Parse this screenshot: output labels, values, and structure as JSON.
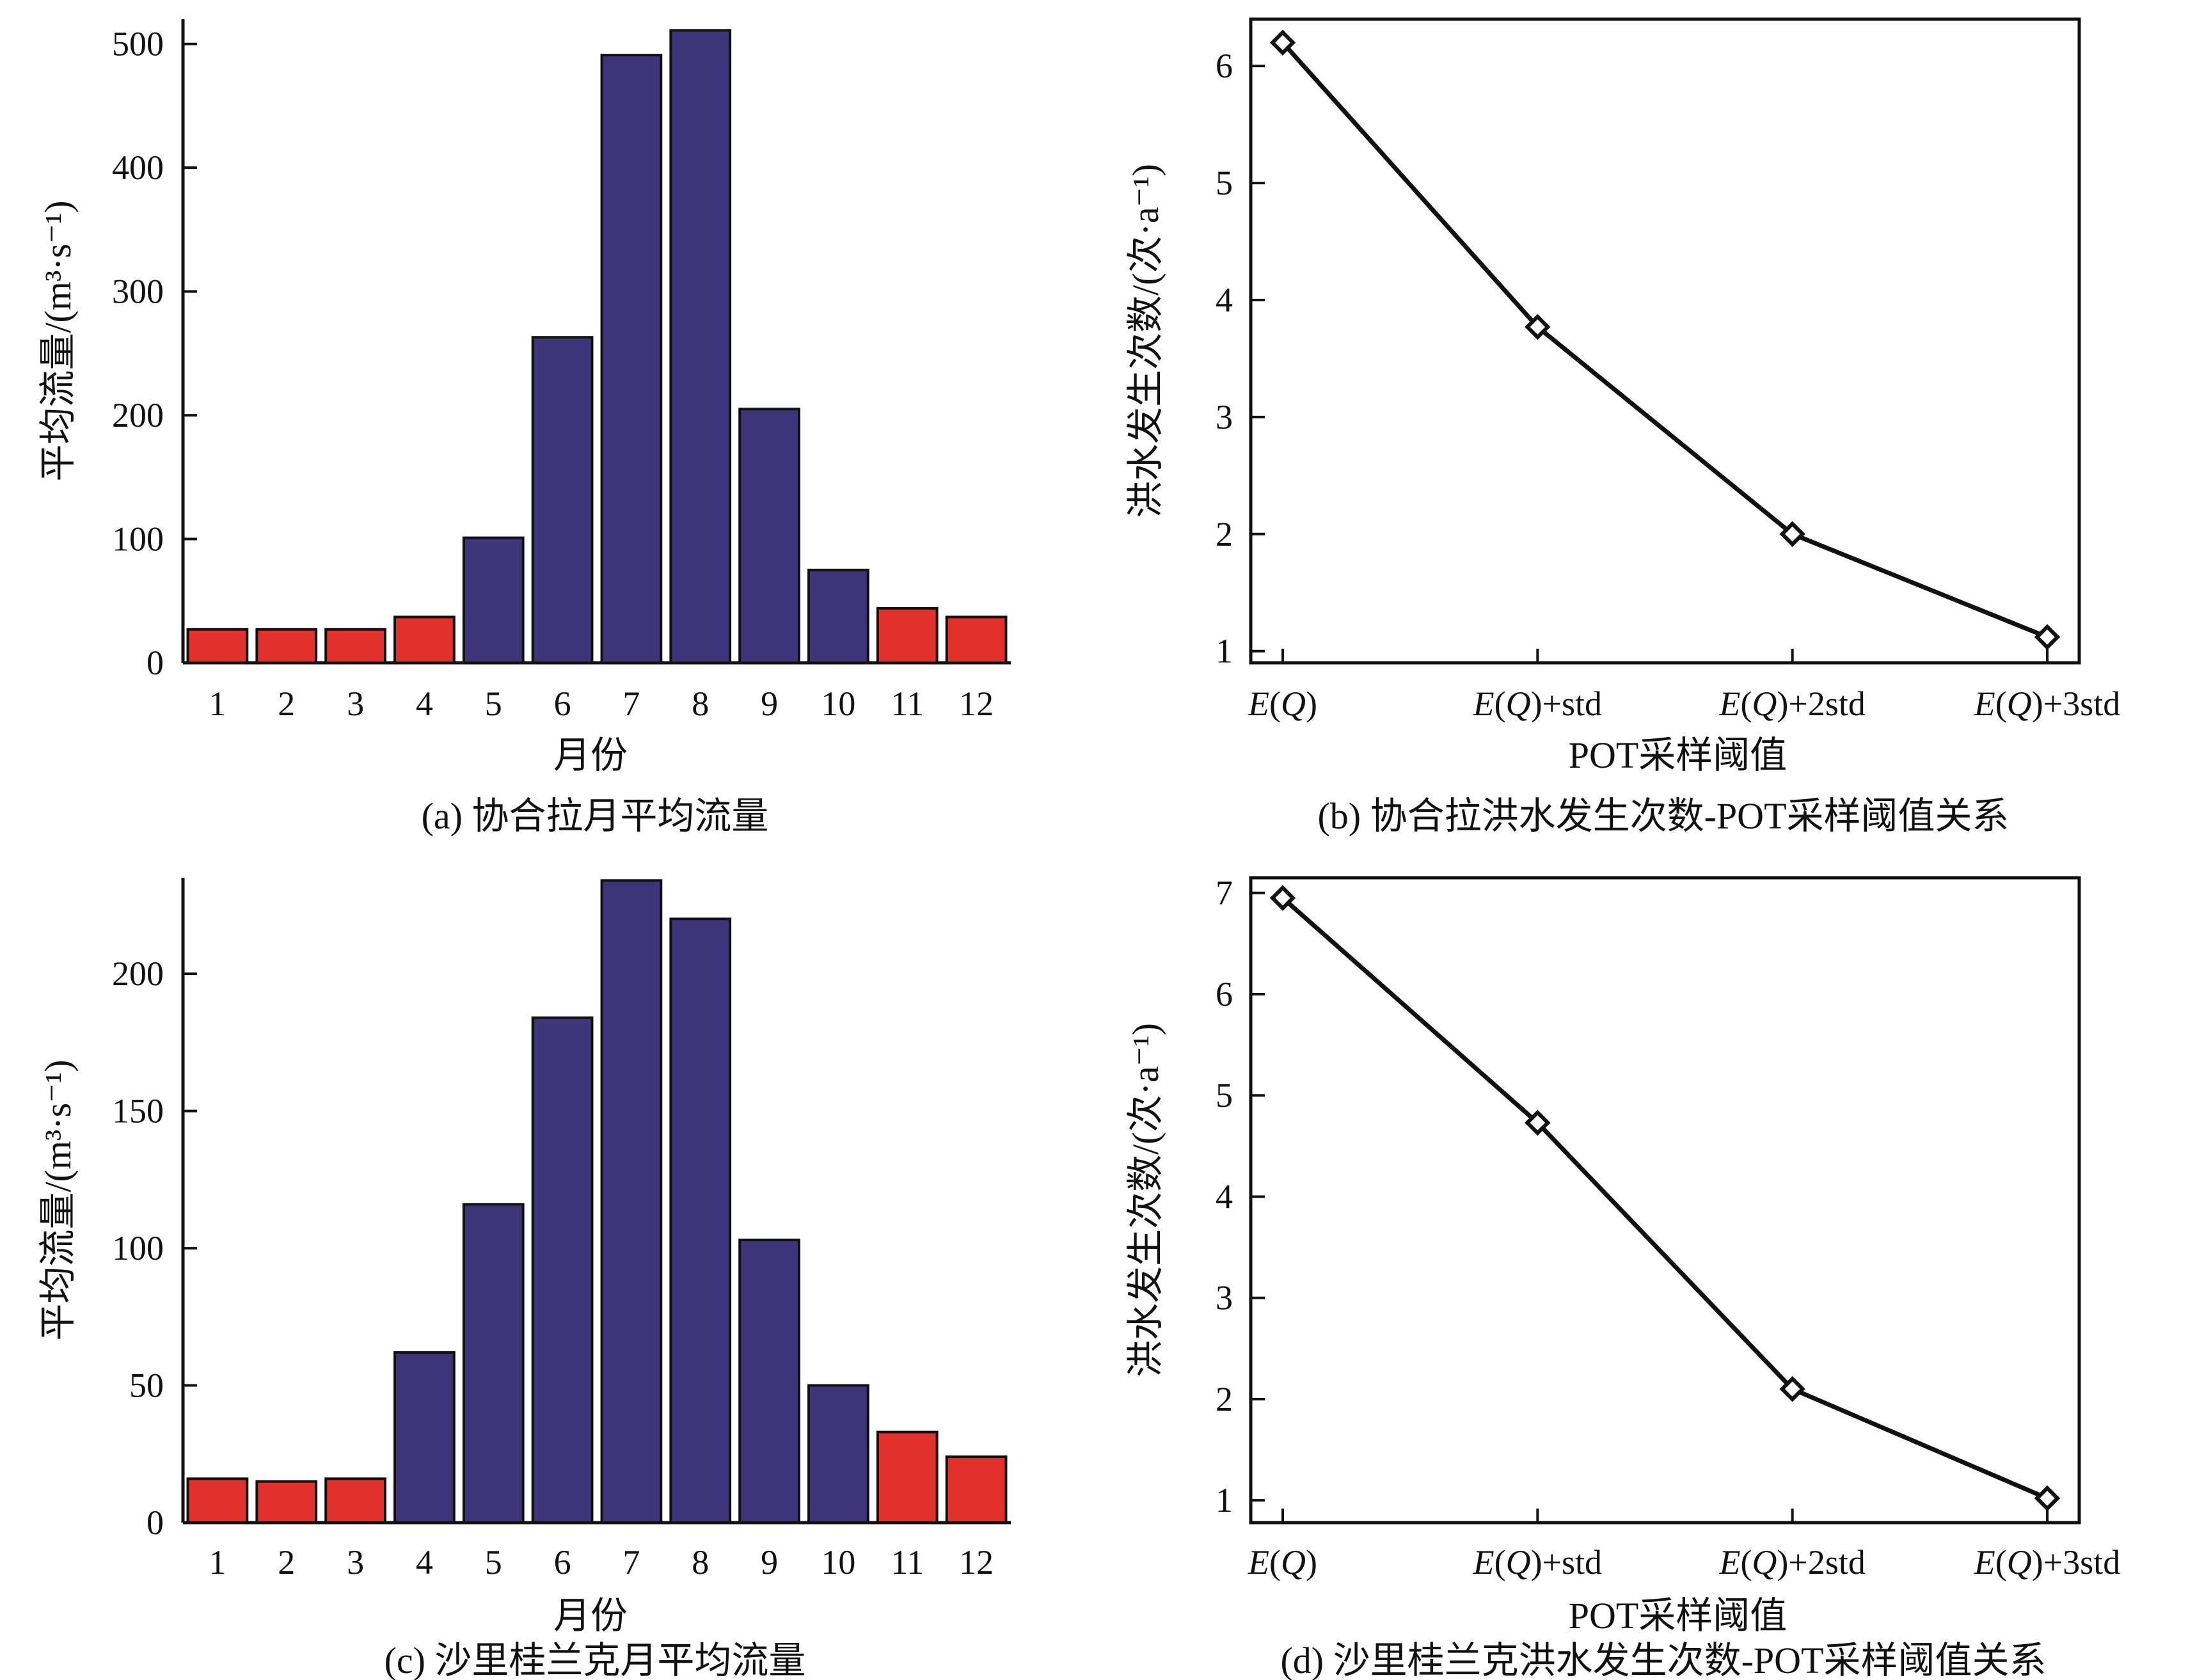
{
  "chart_data": [
    {
      "type": "bar",
      "caption": "(a) 协合拉月平均流量",
      "xlabel": "月份",
      "ylabel": "平均流量/(m³·s⁻¹)",
      "categories": [
        "1",
        "2",
        "3",
        "4",
        "5",
        "6",
        "7",
        "8",
        "9",
        "10",
        "11",
        "12"
      ],
      "values": [
        27,
        27,
        27,
        37,
        101,
        263,
        491,
        511,
        205,
        75,
        44,
        37
      ],
      "bar_colors": [
        "#e3302a",
        "#e3302a",
        "#e3302a",
        "#e3302a",
        "#3e347a",
        "#3e347a",
        "#3e347a",
        "#3e347a",
        "#3e347a",
        "#3e347a",
        "#e3302a",
        "#e3302a"
      ],
      "ylim": [
        0,
        520
      ],
      "yticks": [
        0,
        100,
        200,
        300,
        400,
        500
      ],
      "grid": false
    },
    {
      "type": "line",
      "caption": "(b) 协合拉洪水发生次数-POT采样阈值关系",
      "xlabel": "POT采样阈值",
      "ylabel": "洪水发生次数/(次·a⁻¹)",
      "categories": [
        "E(Q)",
        "E(Q)+std",
        "E(Q)+2std",
        "E(Q)+3std"
      ],
      "series": [
        {
          "values": [
            6.2,
            3.77,
            2.0,
            1.12
          ]
        }
      ],
      "ylim": [
        0.9,
        6.4
      ],
      "yticks": [
        1,
        2,
        3,
        4,
        5,
        6
      ],
      "marker": "diamond",
      "line_color": "#111111",
      "grid": false
    },
    {
      "type": "bar",
      "caption": "(c) 沙里桂兰克月平均流量",
      "xlabel": "月份",
      "ylabel": "平均流量/(m³·s⁻¹)",
      "categories": [
        "1",
        "2",
        "3",
        "4",
        "5",
        "6",
        "7",
        "8",
        "9",
        "10",
        "11",
        "12"
      ],
      "values": [
        16,
        15,
        16,
        62,
        116,
        184,
        234,
        220,
        103,
        50,
        33,
        24
      ],
      "bar_colors": [
        "#e3302a",
        "#e3302a",
        "#e3302a",
        "#3e347a",
        "#3e347a",
        "#3e347a",
        "#3e347a",
        "#3e347a",
        "#3e347a",
        "#3e347a",
        "#e3302a",
        "#e3302a"
      ],
      "ylim": [
        0,
        235
      ],
      "yticks": [
        0,
        50,
        100,
        150,
        200
      ],
      "grid": false
    },
    {
      "type": "line",
      "caption": "(d) 沙里桂兰克洪水发生次数-POT采样阈值关系",
      "xlabel": "POT采样阈值",
      "ylabel": "洪水发生次数/(次·a⁻¹)",
      "categories": [
        "E(Q)",
        "E(Q)+std",
        "E(Q)+2std",
        "E(Q)+3std"
      ],
      "series": [
        {
          "values": [
            6.95,
            4.73,
            2.1,
            1.02
          ]
        }
      ],
      "ylim": [
        0.78,
        7.15
      ],
      "yticks": [
        1,
        2,
        3,
        4,
        5,
        6,
        7
      ],
      "marker": "diamond",
      "line_color": "#111111",
      "grid": false
    }
  ]
}
